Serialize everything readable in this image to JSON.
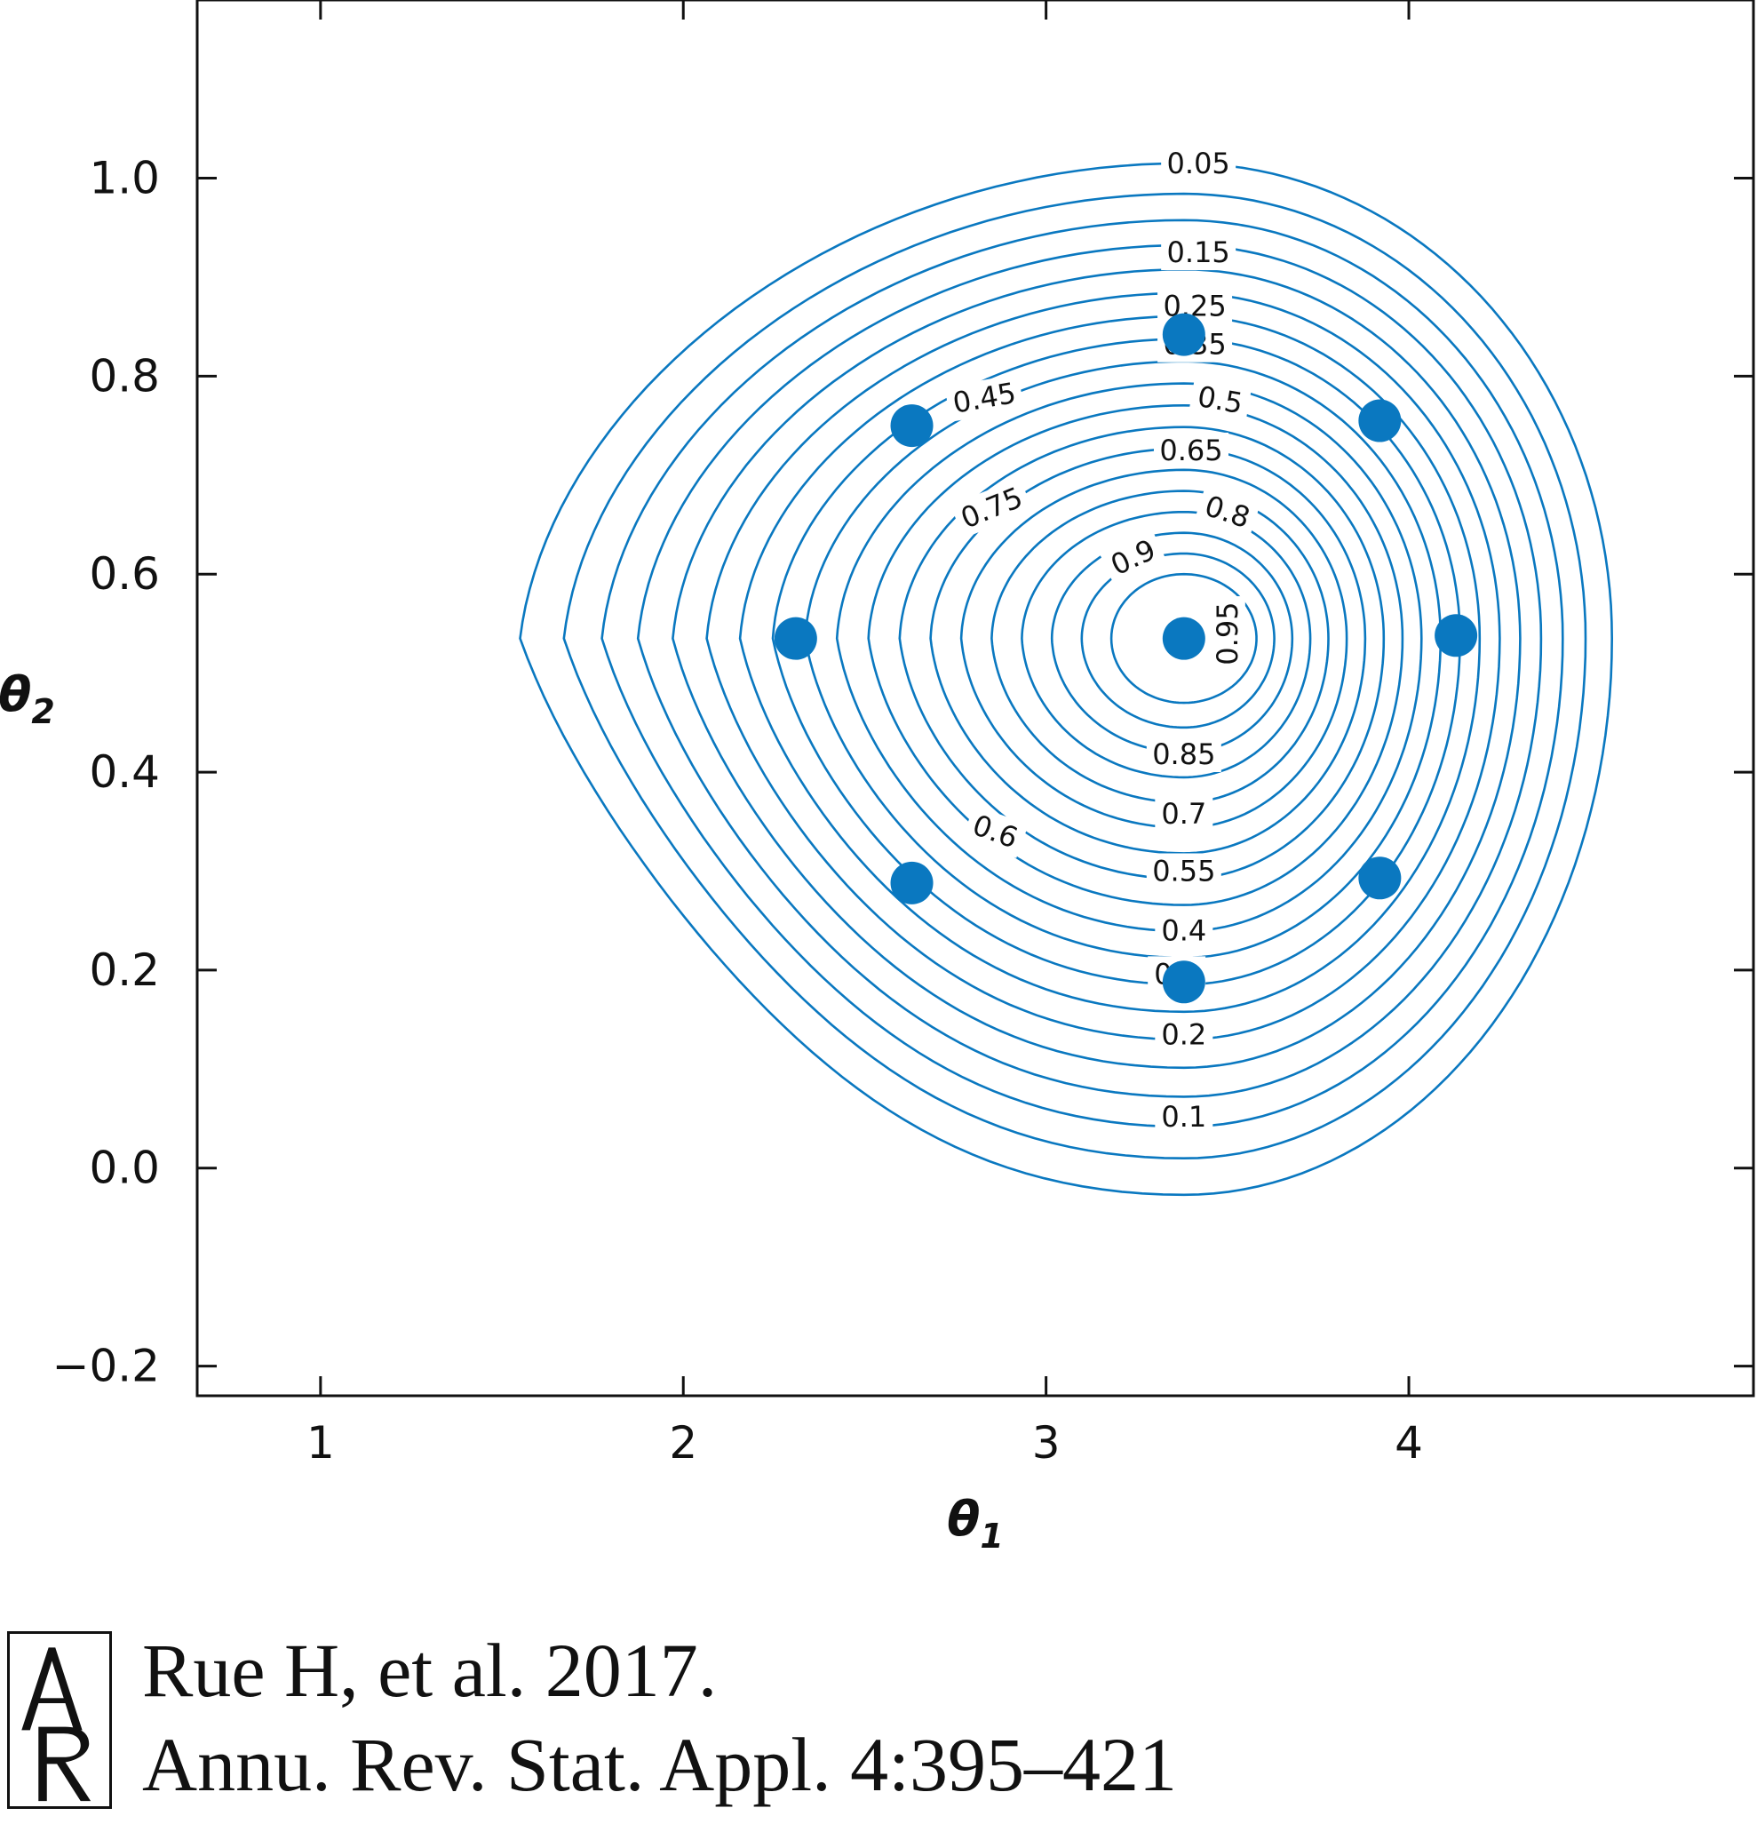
{
  "chart_data": {
    "type": "contour",
    "title": "",
    "xlabel": "θ1",
    "ylabel": "θ2",
    "xlim": [
      0.66,
      4.95
    ],
    "ylim": [
      -0.23,
      1.18
    ],
    "xticks": [
      1,
      2,
      3,
      4
    ],
    "yticks": [
      -0.2,
      0.0,
      0.2,
      0.4,
      0.6,
      0.8,
      1.0
    ],
    "xtick_labels": [
      "1",
      "2",
      "3",
      "4"
    ],
    "ytick_labels": [
      "−0.2",
      "0.0",
      "0.2",
      "0.4",
      "0.6",
      "0.8",
      "1.0"
    ],
    "grid": false,
    "line_color": "#0a78c0",
    "point_color": "#0a78c0",
    "center": {
      "x": 3.38,
      "y": 0.535
    },
    "contour_levels": [
      0.05,
      0.1,
      0.15,
      0.2,
      0.25,
      0.3,
      0.35,
      0.4,
      0.45,
      0.5,
      0.55,
      0.6,
      0.65,
      0.7,
      0.75,
      0.8,
      0.85,
      0.9,
      0.95
    ],
    "contour_labels": [
      {
        "text": "0.05",
        "x": 3.42,
        "y": 1.015,
        "angle": 0
      },
      {
        "text": "0.15",
        "x": 3.42,
        "y": 0.925,
        "angle": 0
      },
      {
        "text": "0.25",
        "x": 3.41,
        "y": 0.871,
        "angle": 0
      },
      {
        "text": "0.35",
        "x": 3.41,
        "y": 0.832,
        "angle": 0
      },
      {
        "text": "0.45",
        "x": 2.83,
        "y": 0.778,
        "angle": -10
      },
      {
        "text": "0.5",
        "x": 3.48,
        "y": 0.776,
        "angle": 10
      },
      {
        "text": "0.65",
        "x": 3.4,
        "y": 0.725,
        "angle": 0
      },
      {
        "text": "0.75",
        "x": 2.85,
        "y": 0.667,
        "angle": -22
      },
      {
        "text": "0.8",
        "x": 3.5,
        "y": 0.663,
        "angle": 18
      },
      {
        "text": "0.9",
        "x": 3.24,
        "y": 0.617,
        "angle": -25
      },
      {
        "text": "0.95",
        "x": 3.5,
        "y": 0.54,
        "angle": -90
      },
      {
        "text": "0.85",
        "x": 3.38,
        "y": 0.418,
        "angle": 0
      },
      {
        "text": "0.7",
        "x": 3.38,
        "y": 0.358,
        "angle": 0
      },
      {
        "text": "0.6",
        "x": 2.86,
        "y": 0.34,
        "angle": 20
      },
      {
        "text": "0.55",
        "x": 3.38,
        "y": 0.3,
        "angle": 0
      },
      {
        "text": "0.4",
        "x": 3.38,
        "y": 0.24,
        "angle": 0
      },
      {
        "text": "0.3",
        "x": 3.36,
        "y": 0.196,
        "angle": 0
      },
      {
        "text": "0.2",
        "x": 3.38,
        "y": 0.135,
        "angle": 0
      },
      {
        "text": "0.1",
        "x": 3.38,
        "y": 0.052,
        "angle": 0
      }
    ],
    "points": [
      {
        "x": 3.38,
        "y": 0.535
      },
      {
        "x": 3.38,
        "y": 0.842
      },
      {
        "x": 3.92,
        "y": 0.755
      },
      {
        "x": 4.13,
        "y": 0.538
      },
      {
        "x": 3.92,
        "y": 0.293
      },
      {
        "x": 3.38,
        "y": 0.188
      },
      {
        "x": 2.63,
        "y": 0.288
      },
      {
        "x": 2.31,
        "y": 0.535
      },
      {
        "x": 2.63,
        "y": 0.75
      }
    ]
  },
  "citation": {
    "logo_text": "AR",
    "line1": "Rue H, et al. 2017.",
    "line2": "Annu. Rev. Stat. Appl. 4:395–421"
  }
}
